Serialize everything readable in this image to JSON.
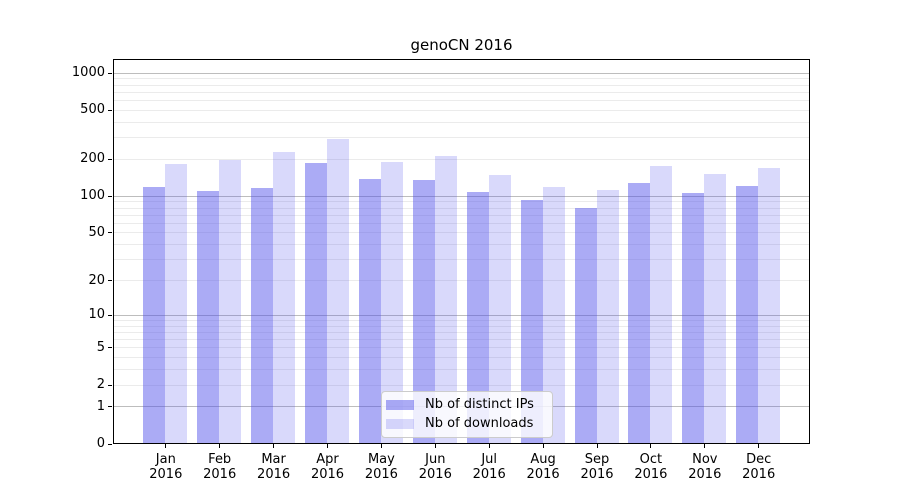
{
  "title": "genoCN 2016",
  "chart_data": {
    "type": "bar",
    "title": "genoCN 2016",
    "categories": [
      "Jan",
      "Feb",
      "Mar",
      "Apr",
      "May",
      "Jun",
      "Jul",
      "Aug",
      "Sep",
      "Oct",
      "Nov",
      "Dec"
    ],
    "category_year": "2016",
    "series": [
      {
        "name": "Nb of distinct IPs",
        "color": "rgba(80,80,235,0.48)",
        "values": [
          117,
          110,
          115,
          186,
          136,
          134,
          107,
          92,
          80,
          128,
          106,
          120
        ]
      },
      {
        "name": "Nb of downloads",
        "color": "rgba(80,80,235,0.22)",
        "values": [
          183,
          197,
          226,
          287,
          189,
          211,
          148,
          118,
          111,
          175,
          150,
          167
        ]
      }
    ],
    "xlabel": "",
    "ylabel": "",
    "yscale": "log1p",
    "yticks": [
      0,
      1,
      2,
      5,
      10,
      20,
      50,
      100,
      200,
      500,
      1000
    ],
    "ylim": [
      0,
      1286
    ],
    "grid": "both",
    "legend_position": "lower center"
  },
  "colors": {
    "bar_dark": "rgba(80,80,235,0.48)",
    "bar_light": "rgba(80,80,235,0.22)",
    "grid_major": "#bdbdbd",
    "grid_minor": "#ebebeb",
    "axis": "#000000",
    "legend_border": "#cccccc"
  }
}
